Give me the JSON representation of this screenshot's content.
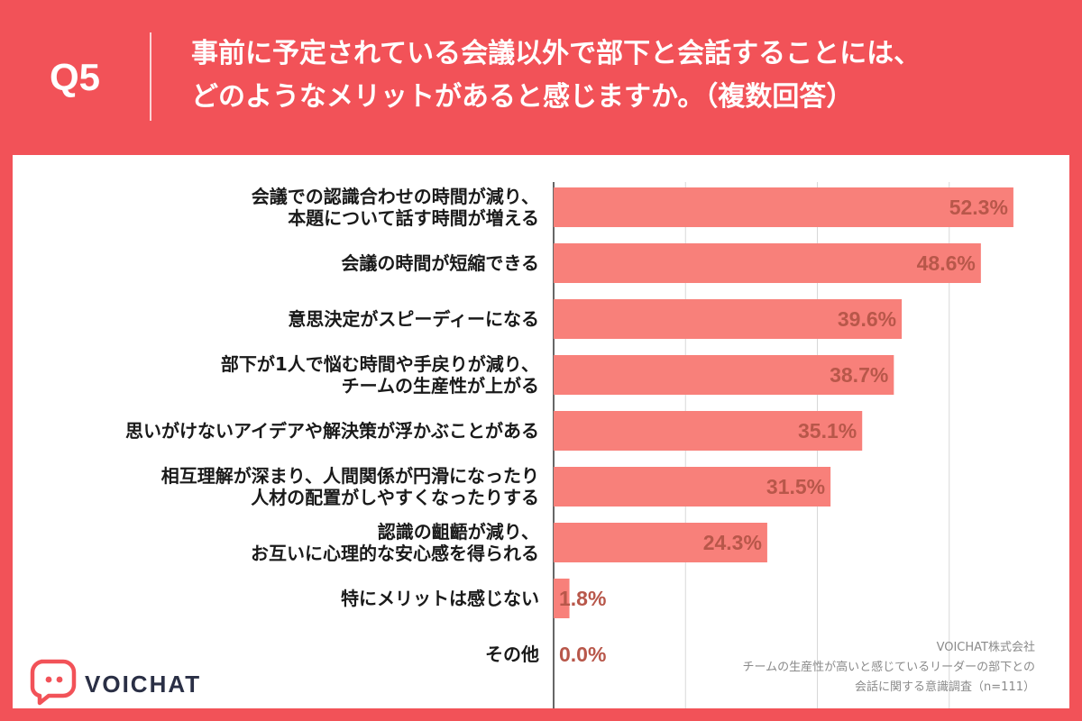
{
  "header": {
    "question_number": "Q5",
    "title_line1": "事前に予定されている会議以外で部下と会話することには、",
    "title_line2": "どのようなメリットがあると感じますか。（複数回答）"
  },
  "chart_data": {
    "type": "bar",
    "orientation": "horizontal",
    "categories": [
      [
        "会議での認識合わせの時間が減り、",
        "本題について話す時間が増える"
      ],
      [
        "会議の時間が短縮できる"
      ],
      [
        "意思決定がスピーディーになる"
      ],
      [
        "部下が1人で悩む時間や手戻りが減り、",
        "チームの生産性が上がる"
      ],
      [
        "思いがけないアイデアや解決策が浮かぶことがある"
      ],
      [
        "相互理解が深まり、人間関係が円滑になったり",
        "人材の配置がしやすくなったりする"
      ],
      [
        "認識の齟齬が減り、",
        "お互いに心理的な安心感を得られる"
      ],
      [
        "特にメリットは感じない"
      ],
      [
        "その他"
      ]
    ],
    "values": [
      52.3,
      48.6,
      39.6,
      38.7,
      35.1,
      31.5,
      24.3,
      1.8,
      0.0
    ],
    "value_labels": [
      "52.3%",
      "48.6%",
      "39.6%",
      "38.7%",
      "35.1%",
      "31.5%",
      "24.3%",
      "1.8%",
      "0.0%"
    ],
    "xlim": [
      0,
      60
    ],
    "gridlines_at": [
      15,
      30,
      45,
      60
    ],
    "bar_color": "#f8807a",
    "grid": true
  },
  "logo": {
    "text": "VOICHAT",
    "icon": "voichat-speech-bubble-icon"
  },
  "source": {
    "company": "VOICHAT株式会社",
    "survey_line1": "チームの生産性が高いと感じているリーダーの部下との",
    "survey_line2": "会話に関する意識調査（n=111）"
  },
  "colors": {
    "background": "#f25258",
    "panel": "#ffffff",
    "value_text": "#b8574a",
    "logo_text": "#2a2f45"
  }
}
